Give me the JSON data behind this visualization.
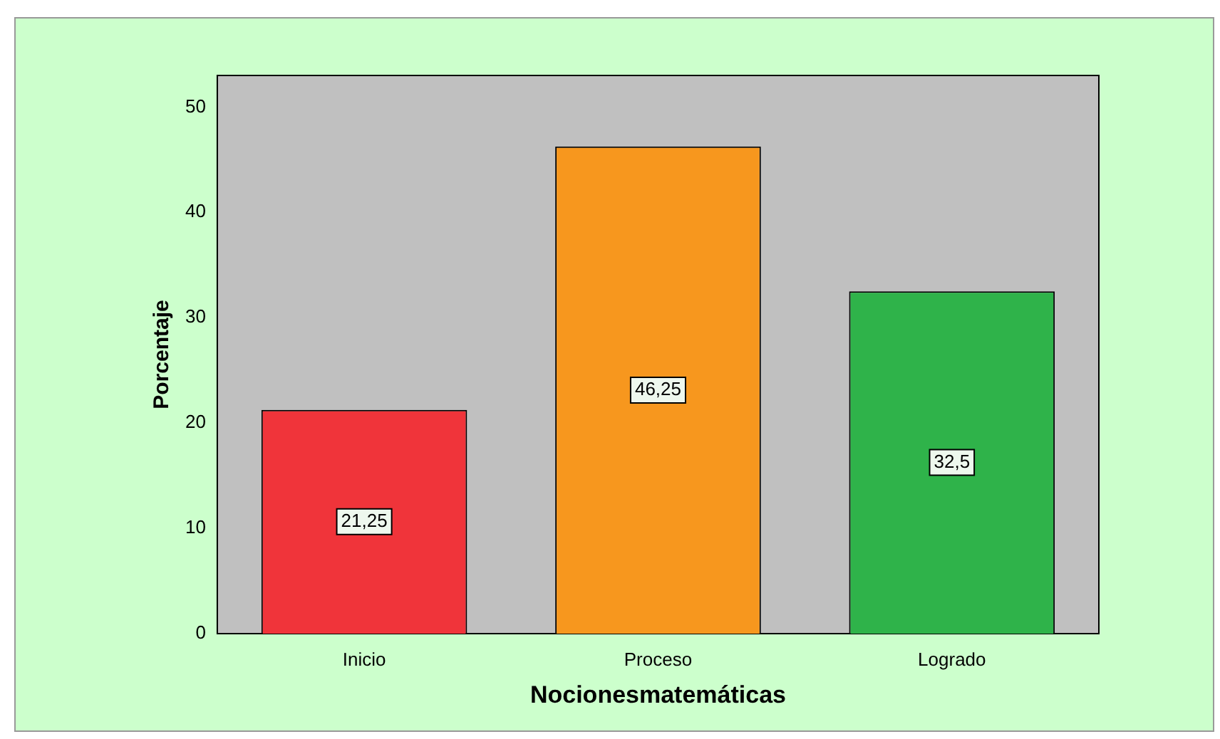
{
  "chart_data": {
    "type": "bar",
    "xlabel": "Nocionesmatemáticas",
    "ylabel": "Porcentaje",
    "categories": [
      "Inicio",
      "Proceso",
      "Logrado"
    ],
    "values": [
      21.25,
      46.25,
      32.5
    ],
    "colors": [
      "#f0343a",
      "#f7971e",
      "#2fb34a"
    ],
    "value_labels": [
      "21,25",
      "46,25",
      "32,5"
    ],
    "ylim": [
      0,
      53
    ],
    "yticks": [
      0,
      10,
      20,
      30,
      40,
      50
    ],
    "grid": false,
    "legend": false
  }
}
